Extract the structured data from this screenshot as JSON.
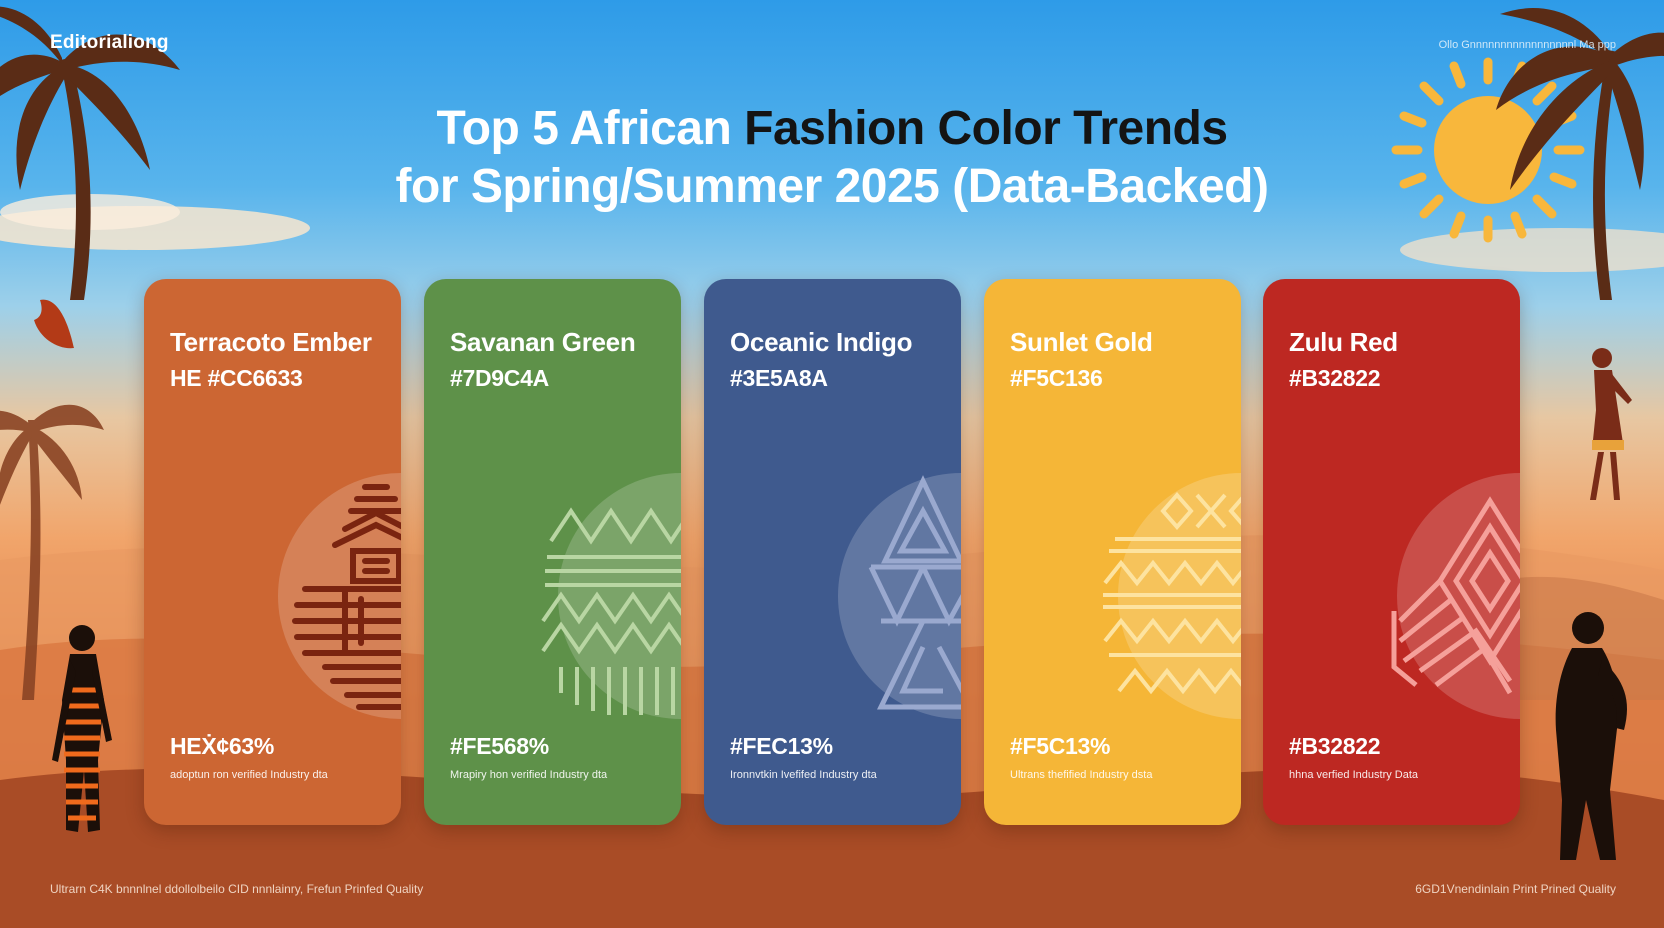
{
  "brand": "Editorialiong",
  "top_right_note": "Ollo Gnnnnnnnnnnnnnnnnnl  Ma ppp",
  "title": {
    "line1_light": "Top 5 African ",
    "line1_dark": "Fashion Color Trends",
    "line2": "for Spring/Summer 2025 (Data-Backed)"
  },
  "colors": {
    "sky_top": "#2e9be8",
    "sun": "#f8b73c",
    "palm": "#5a2c16",
    "silhouette": "#1b0f09"
  },
  "cards": [
    {
      "name": "Terracoto Ember",
      "hex_label": "HE #CC6633",
      "stat": "HEẊ¢63%",
      "source": "adoptun ron verified Industry dta",
      "color": "#cc6633",
      "motif_color": "#7a2410",
      "motif": "mask"
    },
    {
      "name": "Savanan Green",
      "hex_label": "#7D9C4A",
      "stat": "#FE568%",
      "source": "Mrapiry hon verified Industry dta",
      "color": "#5e9149",
      "motif_color": "#b9d6a3",
      "motif": "zigzag"
    },
    {
      "name": "Oceanic Indigo",
      "hex_label": "#3E5A8A",
      "stat": "#FEC13%",
      "source": "Ironnvtkin Ivefifed Industry dta",
      "color": "#3f5a8e",
      "motif_color": "#9aa9cf",
      "motif": "triangles"
    },
    {
      "name": "Sunlet Gold",
      "hex_label": "#F5C136",
      "stat": "#F5C13%",
      "source": "Ultrans thefified Industry dsta",
      "color": "#f5b637",
      "motif_color": "#fde3a0",
      "motif": "zigzag"
    },
    {
      "name": "Zulu Red",
      "hex_label": "#B32822",
      "stat": "#B32822",
      "source": "hhna verfied Industry Data",
      "color": "#bd2822",
      "motif_color": "#f5a09a",
      "motif": "diamond"
    }
  ],
  "footer_left": "Ultrarn C4K bnnnlnel ddollolbeilo CID nnnlainry, Frefun Prinfed Quality",
  "footer_right": "6GD1Vnendinlain Print Prined Quality"
}
